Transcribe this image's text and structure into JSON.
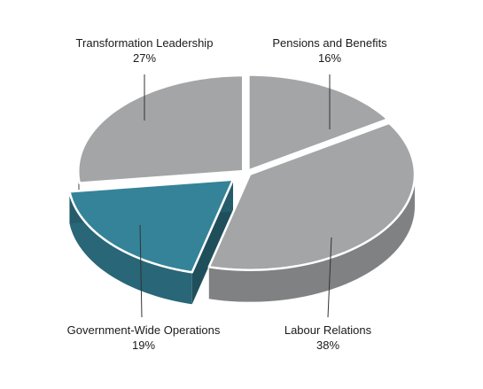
{
  "chart_data": {
    "type": "pie",
    "title": "",
    "slices": [
      {
        "label": "Pensions and Benefits",
        "value": 16,
        "value_label": "16%",
        "color": "#a3a5a7",
        "exploded": false
      },
      {
        "label": "Labour Relations",
        "value": 38,
        "value_label": "38%",
        "color": "#a3a5a7",
        "exploded": false
      },
      {
        "label": "Government-Wide Operations",
        "value": 19,
        "value_label": "19%",
        "color": "#358399",
        "exploded": true
      },
      {
        "label": "Transformation Leadership",
        "value": 27,
        "value_label": "27%",
        "color": "#a3a5a7",
        "exploded": false
      }
    ],
    "style": "3d",
    "legend": "none"
  }
}
